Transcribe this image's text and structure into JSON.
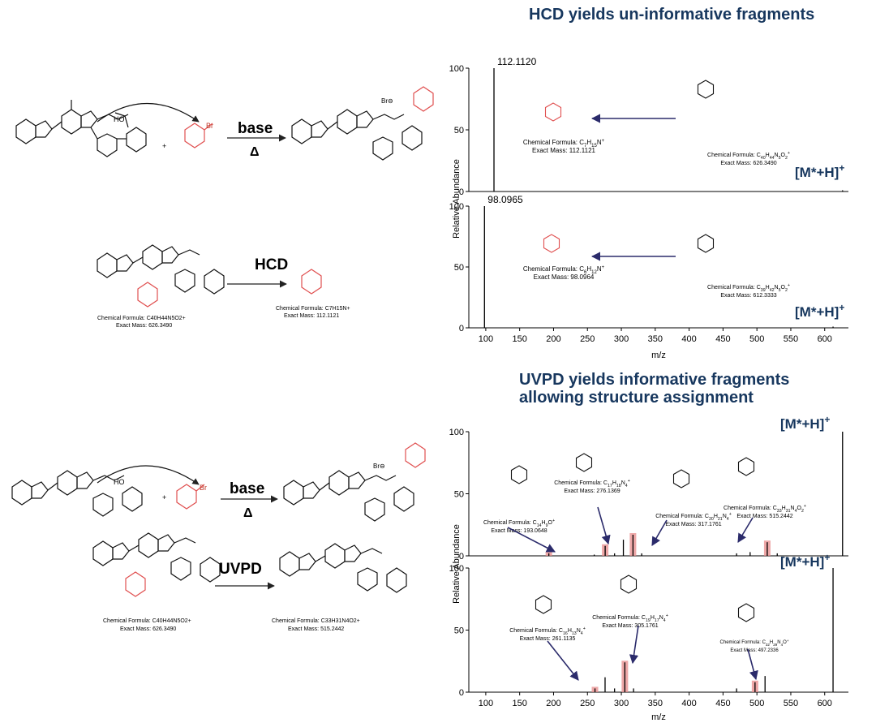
{
  "titles": {
    "hcd": "HCD yields un-informative fragments",
    "uvpd_line1": "UVPD yields informative fragments",
    "uvpd_line2": "allowing structure assignment"
  },
  "scheme": {
    "base_label": "base",
    "heat_label": "Δ",
    "hcd_label": "HCD",
    "uvpd_label": "UVPD",
    "plus": "+",
    "br": "Br",
    "cf_label": "Chemical Formula:",
    "em_label": "Exact Mass:",
    "precursor_formula": "C40H44N5O2+",
    "precursor_mass": "626.3490",
    "hcd_product_formula": "C7H15N+",
    "hcd_product_mass": "112.1121",
    "uvpd_product_formula": "C33H31N4O2+",
    "uvpd_product_mass": "515.2442"
  },
  "axis_common": {
    "ylabel": "Relative Abundance",
    "xlabel": "m/z",
    "ion_label": "[M*+H]+"
  },
  "chart_data": [
    {
      "id": "hcd_top",
      "type": "bar",
      "xlim": [
        75,
        635
      ],
      "ylim": [
        0,
        100
      ],
      "yticks": [
        0,
        50,
        100
      ],
      "peaks": [
        {
          "x": 112.112,
          "y": 100,
          "label": "112.1120"
        },
        {
          "x": 626.35,
          "y": 1
        }
      ],
      "annotations": [
        {
          "formula": "C7H15N+",
          "mass": "112.1121"
        },
        {
          "formula": "C40H44N5O2+",
          "mass": "626.3490"
        }
      ]
    },
    {
      "id": "hcd_bottom",
      "type": "bar",
      "xlim": [
        75,
        635
      ],
      "ylim": [
        0,
        100
      ],
      "yticks": [
        0,
        50,
        100
      ],
      "xticks": [
        100,
        150,
        200,
        250,
        300,
        350,
        400,
        450,
        500,
        550,
        600
      ],
      "peaks": [
        {
          "x": 98.0965,
          "y": 100,
          "label": "98.0965"
        },
        {
          "x": 612.33,
          "y": 1
        }
      ],
      "annotations": [
        {
          "formula": "C6H12N+",
          "mass": "98.0964"
        },
        {
          "formula": "C39H42N5O2+",
          "mass": "612.3333"
        }
      ]
    },
    {
      "id": "uvpd_top",
      "type": "bar",
      "xlim": [
        75,
        635
      ],
      "ylim": [
        0,
        100
      ],
      "yticks": [
        0,
        50,
        100
      ],
      "peaks": [
        {
          "x": 193.06,
          "y": 2,
          "h": true
        },
        {
          "x": 260,
          "y": 1
        },
        {
          "x": 276.14,
          "y": 8,
          "h": true
        },
        {
          "x": 290,
          "y": 2
        },
        {
          "x": 303,
          "y": 13
        },
        {
          "x": 317.18,
          "y": 17,
          "h": true
        },
        {
          "x": 330,
          "y": 2
        },
        {
          "x": 470,
          "y": 2
        },
        {
          "x": 490,
          "y": 3
        },
        {
          "x": 515.24,
          "y": 11,
          "h": true
        },
        {
          "x": 530,
          "y": 2
        },
        {
          "x": 626.35,
          "y": 100
        }
      ],
      "annotations": [
        {
          "formula": "C14H9O+",
          "mass": "193.0648"
        },
        {
          "formula": "C17H18N4+",
          "mass": "276.1369"
        },
        {
          "formula": "C20H21N4+",
          "mass": "317.1761"
        },
        {
          "formula": "C33H31N4O2+",
          "mass": "515.2442"
        }
      ]
    },
    {
      "id": "uvpd_bottom",
      "type": "bar",
      "xlim": [
        75,
        635
      ],
      "ylim": [
        0,
        100
      ],
      "yticks": [
        0,
        50,
        100
      ],
      "xticks": [
        100,
        150,
        200,
        250,
        300,
        350,
        400,
        450,
        500,
        550,
        600
      ],
      "peaks": [
        {
          "x": 261.11,
          "y": 3,
          "h": true
        },
        {
          "x": 276,
          "y": 12
        },
        {
          "x": 290,
          "y": 3
        },
        {
          "x": 305.18,
          "y": 24,
          "h": true
        },
        {
          "x": 318,
          "y": 3
        },
        {
          "x": 470,
          "y": 3
        },
        {
          "x": 497.23,
          "y": 8,
          "h": true
        },
        {
          "x": 512,
          "y": 13
        },
        {
          "x": 612.33,
          "y": 100
        }
      ],
      "annotations": [
        {
          "formula": "C16H13N4+",
          "mass": "261.1135"
        },
        {
          "formula": "C19H17N4+",
          "mass": "305.1761"
        },
        {
          "formula": "C32H29N4O+",
          "mass": "497.2336"
        }
      ]
    }
  ]
}
